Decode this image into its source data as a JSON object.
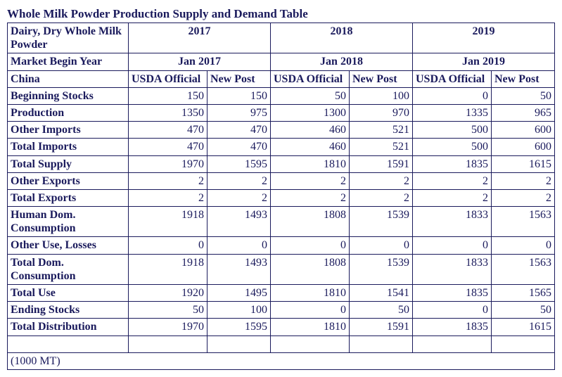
{
  "title": "Whole Milk Powder Production Supply and Demand Table",
  "commodity_label": "Dairy, Dry Whole Milk Powder",
  "market_label": "Market Begin Year",
  "country_label": "China",
  "years": [
    "2017",
    "2018",
    "2019"
  ],
  "market_begin": [
    "Jan 2017",
    "Jan 2018",
    "Jan 2019"
  ],
  "subcols": {
    "usda": "USDA Official",
    "newpost": "New Post"
  },
  "rows": [
    {
      "label": "Beginning Stocks",
      "v": [
        "150",
        "150",
        "50",
        "100",
        "0",
        "50"
      ]
    },
    {
      "label": "Production",
      "v": [
        "1350",
        "975",
        "1300",
        "970",
        "1335",
        "965"
      ]
    },
    {
      "label": "Other Imports",
      "v": [
        "470",
        "470",
        "460",
        "521",
        "500",
        "600"
      ]
    },
    {
      "label": "Total Imports",
      "v": [
        "470",
        "470",
        "460",
        "521",
        "500",
        "600"
      ]
    },
    {
      "label": "Total Supply",
      "v": [
        "1970",
        "1595",
        "1810",
        "1591",
        "1835",
        "1615"
      ]
    },
    {
      "label": "Other Exports",
      "v": [
        "2",
        "2",
        "2",
        "2",
        "2",
        "2"
      ]
    },
    {
      "label": "Total Exports",
      "v": [
        "2",
        "2",
        "2",
        "2",
        "2",
        "2"
      ]
    },
    {
      "label": "Human Dom. Consumption",
      "v": [
        "1918",
        "1493",
        "1808",
        "1539",
        "1833",
        "1563"
      ]
    },
    {
      "label": "Other Use, Losses",
      "v": [
        "0",
        "0",
        "0",
        "0",
        "0",
        "0"
      ]
    },
    {
      "label": "Total Dom. Consumption",
      "v": [
        "1918",
        "1493",
        "1808",
        "1539",
        "1833",
        "1563"
      ]
    },
    {
      "label": "Total Use",
      "v": [
        "1920",
        "1495",
        "1810",
        "1541",
        "1835",
        "1565"
      ]
    },
    {
      "label": "Ending Stocks",
      "v": [
        "50",
        "100",
        "0",
        "50",
        "0",
        "50"
      ]
    },
    {
      "label": "Total Distribution",
      "v": [
        "1970",
        "1595",
        "1810",
        "1591",
        "1835",
        "1615"
      ]
    }
  ],
  "unit_note": "(1000 MT)",
  "colors": {
    "text": "#1a1a5c",
    "border": "#1a1a5c",
    "background": "#ffffff"
  },
  "font": {
    "family": "Times New Roman",
    "title_size_pt": 13,
    "body_size_pt": 12,
    "weight_header": "bold"
  }
}
